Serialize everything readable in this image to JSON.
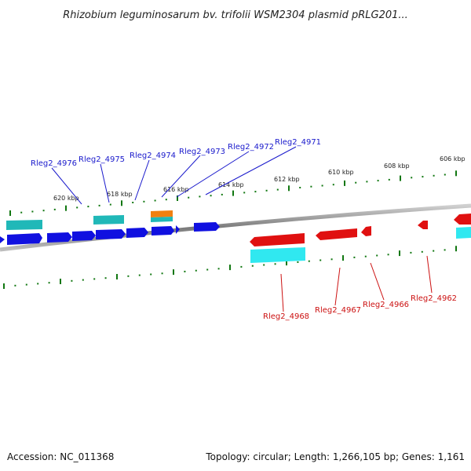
{
  "title": "Rhizobium leguminosarum bv. trifolii WSM2304 plasmid pRLG201...",
  "footer": {
    "accession": "Accession: NC_011368",
    "summary": "Topology: circular; Length: 1,266,105 bp; Genes: 1,161"
  },
  "scale": {
    "tick_labels": [
      "620 kbp",
      "618 kbp",
      "616 kbp",
      "614 kbp",
      "612 kbp",
      "610 kbp",
      "608 kbp",
      "606 kbp"
    ]
  },
  "colors": {
    "forward_cds": "#1010e0",
    "reverse_cds": "#e01010",
    "forward_rna": "#20b8b8",
    "reverse_rna": "#30e8f0",
    "other_feature": "#f08010",
    "backbone": "#8a8a8a",
    "tick": "#117711",
    "forward_label": "#1a1acc",
    "reverse_label": "#cc1111"
  },
  "genes": {
    "forward": [
      "Rleg2_4976",
      "Rleg2_4975",
      "Rleg2_4974",
      "Rleg2_4973",
      "Rleg2_4972",
      "Rleg2_4971"
    ],
    "reverse": [
      "Rleg2_4968",
      "Rleg2_4967",
      "Rleg2_4966",
      "Rleg2_4962"
    ]
  }
}
